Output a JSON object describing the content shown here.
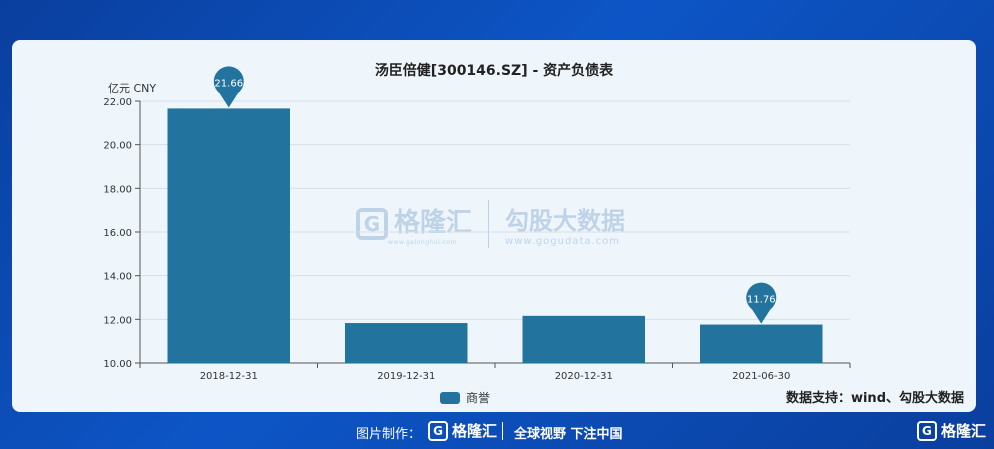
{
  "chart_data": {
    "type": "bar",
    "title": "汤臣倍健[300146.SZ] - 资产负债表",
    "ylabel": "亿元  CNY",
    "categories": [
      "2018-12-31",
      "2019-12-31",
      "2020-12-31",
      "2021-06-30"
    ],
    "series": [
      {
        "name": "商誉",
        "values": [
          21.66,
          11.83,
          12.16,
          11.76
        ]
      }
    ],
    "ylim": [
      10,
      22
    ],
    "yticks": [
      "10.00",
      "12.00",
      "14.00",
      "16.00",
      "18.00",
      "20.00",
      "22.00"
    ],
    "annotations": [
      {
        "category": "2018-12-31",
        "label": "21.66"
      },
      {
        "category": "2021-06-30",
        "label": "11.76"
      }
    ],
    "colors": {
      "bar": "#22739e",
      "grid": "#d8dee6"
    },
    "legend": "bottom-center",
    "grid": true
  },
  "source": "数据支持：wind、勾股大数据",
  "watermark": {
    "logo_char": "G",
    "brand": "格隆汇",
    "brand_url": "www.gelonghui.com",
    "right_title": "勾股大数据",
    "right_url": "www.gogudata.com"
  },
  "footer": {
    "label": "图片制作：",
    "logo_char": "G",
    "logo_text": "格隆汇",
    "slogan": "全球视野 下注中国",
    "corner_text": "格隆汇"
  }
}
